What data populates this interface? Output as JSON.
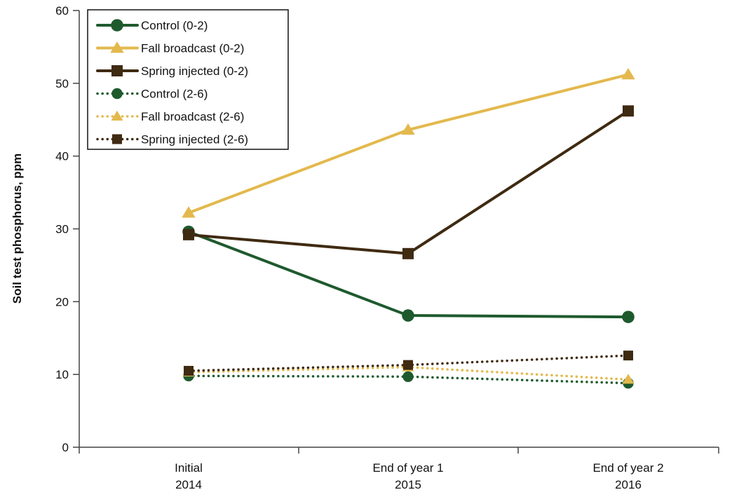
{
  "chart_data": {
    "type": "line",
    "title": "",
    "xlabel": "",
    "ylabel": "Soil test phosphorus, ppm",
    "ylim": [
      0,
      60
    ],
    "yticks": [
      "0",
      "10",
      "20",
      "30",
      "40",
      "50",
      "60"
    ],
    "categories": [
      [
        "Initial",
        "2014"
      ],
      [
        "End of year 1",
        "2015"
      ],
      [
        "End of year 2",
        "2016"
      ]
    ],
    "legend_position": "top-left",
    "grid": false,
    "series": [
      {
        "name": "Control (0-2)",
        "values": [
          29.6,
          18.1,
          17.9
        ],
        "color": "#1e5a2e",
        "marker": "circle",
        "dash": "solid"
      },
      {
        "name": "Fall broadcast (0-2)",
        "values": [
          32.2,
          43.6,
          51.2
        ],
        "color": "#e3b94d",
        "marker": "triangle",
        "dash": "solid"
      },
      {
        "name": "Spring injected (0-2)",
        "values": [
          29.2,
          26.6,
          46.2
        ],
        "color": "#3f2a12",
        "marker": "square",
        "dash": "solid"
      },
      {
        "name": "Control (2-6)",
        "values": [
          9.8,
          9.7,
          8.8
        ],
        "color": "#1e5a2e",
        "marker": "circle",
        "dash": "dotted"
      },
      {
        "name": "Fall broadcast (2-6)",
        "values": [
          10.3,
          11.0,
          9.3
        ],
        "color": "#e3b94d",
        "marker": "triangle",
        "dash": "dotted"
      },
      {
        "name": "Spring injected (2-6)",
        "values": [
          10.5,
          11.3,
          12.6
        ],
        "color": "#3f2a12",
        "marker": "square",
        "dash": "dotted"
      }
    ]
  }
}
